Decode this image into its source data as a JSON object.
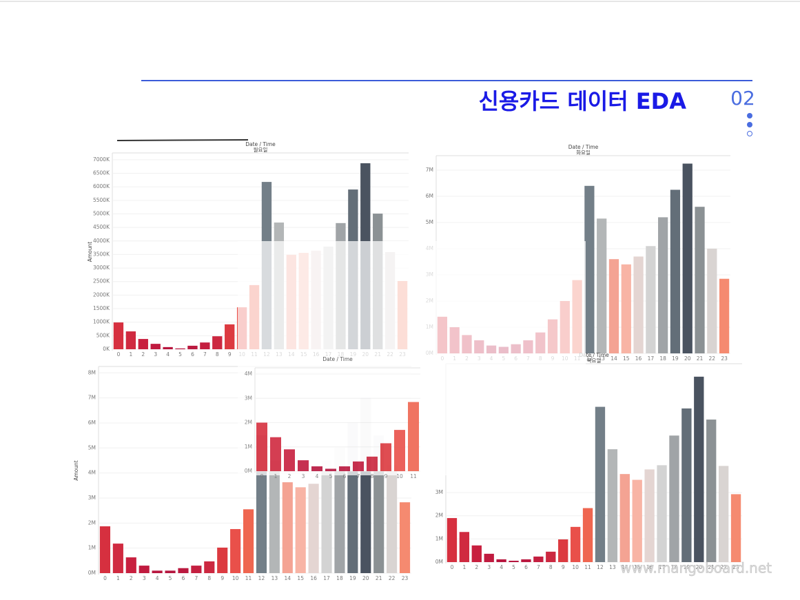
{
  "header": {
    "title": "신용카드 데이터 EDA",
    "number": "02"
  },
  "footer": {
    "site": "www.mangoboard.net"
  },
  "chart_data": [
    {
      "type": "bar",
      "title": "Date / Time",
      "subtitle": "월요일",
      "y_label": "Amount",
      "categories": [
        "0",
        "1",
        "2",
        "3",
        "4",
        "5",
        "6",
        "7",
        "8",
        "9",
        "10",
        "11",
        "12",
        "13",
        "14",
        "15",
        "16",
        "17",
        "18",
        "19",
        "20",
        "21",
        "22",
        "23"
      ],
      "values": [
        990,
        660,
        380,
        200,
        80,
        30,
        130,
        250,
        480,
        920,
        1550,
        2370,
        6180,
        4680,
        3490,
        3560,
        3640,
        3790,
        4660,
        5900,
        6870,
        5010,
        3590,
        2520
      ],
      "colors": [
        "#d6303f",
        "#d02a40",
        "#c8203f",
        "#c01b3f",
        "#b8163e",
        "#b5153e",
        "#bb1a40",
        "#c41f40",
        "#cc2840",
        "#dc3a40",
        "#e9504a",
        "#ef6650",
        "#737f88",
        "#b3b6b7",
        "#f4a393",
        "#f8b4a5",
        "#e4d5d2",
        "#d3d3d3",
        "#a0a4a7",
        "#636e78",
        "#4a5360",
        "#8b9194",
        "#d9d4d2",
        "#f58a70"
      ],
      "ylim": [
        0,
        7200
      ],
      "yticks": [
        {
          "value": 0,
          "label": "0K"
        },
        {
          "value": 500,
          "label": "500K"
        },
        {
          "value": 1000,
          "label": "1000K"
        },
        {
          "value": 1500,
          "label": "1500K"
        },
        {
          "value": 2000,
          "label": "2000K"
        },
        {
          "value": 2500,
          "label": "2500K"
        },
        {
          "value": 3000,
          "label": "3000K"
        },
        {
          "value": 3500,
          "label": "3500K"
        },
        {
          "value": 4000,
          "label": "4000K"
        },
        {
          "value": 4500,
          "label": "4500K"
        },
        {
          "value": 5000,
          "label": "5000K"
        },
        {
          "value": 5500,
          "label": "5500K"
        },
        {
          "value": 6000,
          "label": "6000K"
        },
        {
          "value": 6500,
          "label": "6500K"
        },
        {
          "value": 7000,
          "label": "7000K"
        }
      ],
      "grid": true
    },
    {
      "type": "bar",
      "title": "Date / Time",
      "subtitle": "화요일",
      "categories": [
        "0",
        "1",
        "2",
        "3",
        "4",
        "5",
        "6",
        "7",
        "8",
        "9",
        "10",
        "11",
        "12",
        "13",
        "14",
        "15",
        "16",
        "17",
        "18",
        "19",
        "20",
        "21",
        "22",
        "23"
      ],
      "values": [
        1.4,
        1.0,
        0.7,
        0.5,
        0.3,
        0.25,
        0.35,
        0.5,
        0.8,
        1.3,
        2.0,
        2.8,
        6.4,
        5.15,
        3.6,
        3.4,
        3.7,
        4.1,
        5.2,
        6.25,
        7.25,
        5.6,
        4.0,
        2.85
      ],
      "colors": [
        "#d6303f",
        "#d02a40",
        "#c8203f",
        "#c01b3f",
        "#b8163e",
        "#b5153e",
        "#bb1a40",
        "#c41f40",
        "#cc2840",
        "#dc3a40",
        "#e9504a",
        "#ef6650",
        "#737f88",
        "#b3b6b7",
        "#f4a393",
        "#f8b4a5",
        "#e4d5d2",
        "#d3d3d3",
        "#a0a4a7",
        "#636e78",
        "#4a5360",
        "#8b9194",
        "#d9d4d2",
        "#f58a70"
      ],
      "ylim": [
        0,
        7.5
      ],
      "yticks": [
        {
          "value": 0,
          "label": "0M"
        },
        {
          "value": 1,
          "label": "1M"
        },
        {
          "value": 2,
          "label": "2M"
        },
        {
          "value": 3,
          "label": "3M"
        },
        {
          "value": 4,
          "label": "4M"
        },
        {
          "value": 5,
          "label": "5M"
        },
        {
          "value": 6,
          "label": "6M"
        },
        {
          "value": 7,
          "label": "7M"
        }
      ],
      "grid": true
    },
    {
      "type": "bar",
      "y_label": "Amount",
      "categories": [
        "0",
        "1",
        "2",
        "3",
        "4",
        "5",
        "6",
        "7",
        "8",
        "9",
        "10",
        "11",
        "12",
        "13",
        "14",
        "15",
        "16",
        "17",
        "18",
        "19",
        "20",
        "21",
        "22",
        "23"
      ],
      "values": [
        1.87,
        1.18,
        0.63,
        0.3,
        0.1,
        0.1,
        0.2,
        0.3,
        0.47,
        1.02,
        1.76,
        2.55,
        5.5,
        4.5,
        3.63,
        3.43,
        3.57,
        4.5,
        5.0,
        6.0,
        7.0,
        5.5,
        4.3,
        2.83
      ],
      "colors": [
        "#d6303f",
        "#d02a40",
        "#c8203f",
        "#c01b3f",
        "#b8163e",
        "#b5153e",
        "#bb1a40",
        "#c41f40",
        "#cc2840",
        "#dc3a40",
        "#e9504a",
        "#ef6650",
        "#737f88",
        "#b3b6b7",
        "#f4a393",
        "#f8b4a5",
        "#e4d5d2",
        "#d3d3d3",
        "#a0a4a7",
        "#636e78",
        "#4a5360",
        "#8b9194",
        "#d9d4d2",
        "#f58a70"
      ],
      "ylim": [
        0,
        8.2
      ],
      "yticks": [
        {
          "value": 0,
          "label": "0M"
        },
        {
          "value": 1,
          "label": "1M"
        },
        {
          "value": 2,
          "label": "2M"
        },
        {
          "value": 3,
          "label": "3M"
        },
        {
          "value": 4,
          "label": "4M"
        },
        {
          "value": 5,
          "label": "5M"
        },
        {
          "value": 6,
          "label": "6M"
        },
        {
          "value": 7,
          "label": "7M"
        },
        {
          "value": 8,
          "label": "8M"
        }
      ],
      "grid": true
    },
    {
      "type": "bar",
      "title": "Date / Time",
      "subtitle": "목요일",
      "categories": [
        "0",
        "1",
        "2",
        "3",
        "4",
        "5",
        "6",
        "7",
        "8",
        "9",
        "10",
        "11",
        "12",
        "13",
        "14",
        "15",
        "16",
        "17",
        "18",
        "19",
        "20",
        "21",
        "22",
        "23"
      ],
      "values": [
        1.9,
        1.3,
        0.72,
        0.36,
        0.12,
        0.06,
        0.12,
        0.24,
        0.45,
        0.98,
        1.52,
        2.33,
        6.7,
        4.87,
        3.8,
        3.55,
        4.0,
        4.18,
        5.46,
        6.63,
        8.0,
        6.15,
        4.15,
        2.93
      ],
      "colors": [
        "#d6303f",
        "#d02a40",
        "#c8203f",
        "#c01b3f",
        "#b8163e",
        "#b5153e",
        "#bb1a40",
        "#c41f40",
        "#cc2840",
        "#dc3a40",
        "#e9504a",
        "#ef6650",
        "#737f88",
        "#b3b6b7",
        "#f4a393",
        "#f8b4a5",
        "#e4d5d2",
        "#d3d3d3",
        "#a0a4a7",
        "#636e78",
        "#4a5360",
        "#8b9194",
        "#d9d4d2",
        "#f58a70"
      ],
      "ylim": [
        0,
        8.5
      ],
      "yticks": [
        {
          "value": 0,
          "label": "0M"
        },
        {
          "value": 1,
          "label": "1M"
        },
        {
          "value": 2,
          "label": "2M"
        },
        {
          "value": 3,
          "label": "3M"
        }
      ],
      "grid": true
    },
    {
      "type": "bar",
      "title": "Date / Time",
      "categories": [
        "0",
        "1",
        "2",
        "3",
        "4",
        "5",
        "6",
        "7",
        "8",
        "9",
        "10",
        "11"
      ],
      "values": [
        2.0,
        1.4,
        0.9,
        0.45,
        0.2,
        0.1,
        0.2,
        0.4,
        0.6,
        1.15,
        1.7,
        2.85
      ],
      "colors": [
        "#d6303f",
        "#d02a40",
        "#c8203f",
        "#c01b3f",
        "#b8163e",
        "#b5153e",
        "#bb1a40",
        "#c41f40",
        "#cc2840",
        "#dc3a40",
        "#e9504a",
        "#ef6650"
      ],
      "ylim": [
        0,
        4.2
      ],
      "yticks": [
        {
          "value": 0,
          "label": "0M"
        },
        {
          "value": 1,
          "label": "1M"
        },
        {
          "value": 2,
          "label": "2M"
        },
        {
          "value": 3,
          "label": "3M"
        },
        {
          "value": 4,
          "label": "4M"
        }
      ],
      "grid": true
    }
  ]
}
